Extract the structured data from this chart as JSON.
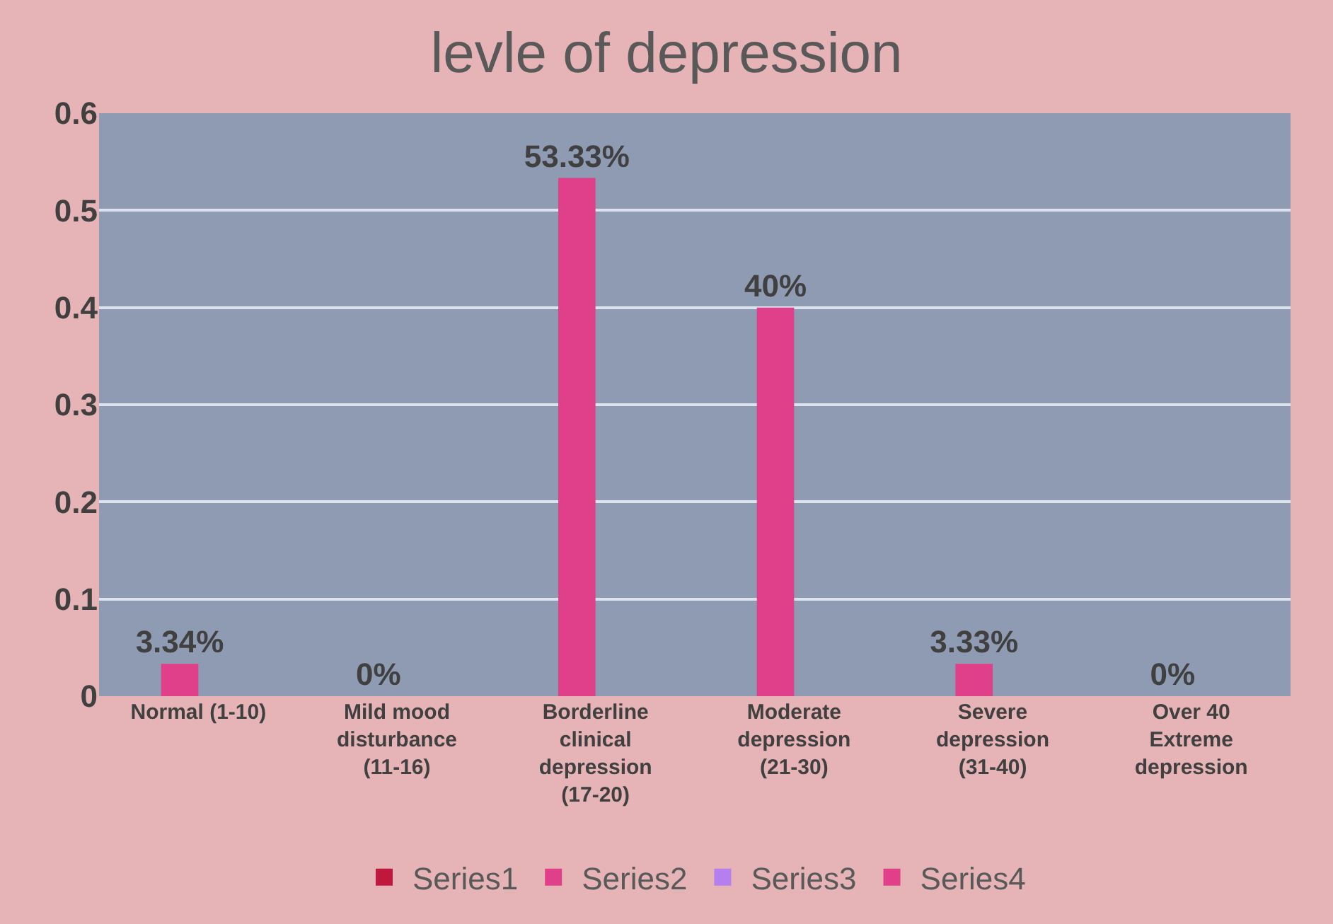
{
  "chart_data": {
    "type": "bar",
    "title": "levle of depression",
    "categories": [
      "Normal (1-10)",
      "Mild mood disturbance (11-16)",
      "Borderline clinical depression (17-20)",
      "Moderate depression (21-30)",
      "Severe depression (31-40)",
      "Over 40 Extreme depression"
    ],
    "series": [
      {
        "name": "Series1",
        "color": "#c0173f",
        "values": [
          null,
          null,
          null,
          null,
          null,
          null
        ]
      },
      {
        "name": "Series2",
        "color": "#e0408a",
        "values": [
          0.0334,
          0,
          0.5333,
          0.4,
          0.0333,
          0
        ],
        "value_labels": [
          "3.34%",
          "0%",
          "53.33%",
          "40%",
          "3.33%",
          "0%"
        ]
      },
      {
        "name": "Series3",
        "color": "#b57ff0",
        "values": [
          null,
          null,
          null,
          null,
          null,
          null
        ]
      },
      {
        "name": "Series4",
        "color": "#e0408a",
        "values": [
          null,
          null,
          null,
          null,
          null,
          null
        ]
      }
    ],
    "ylim": [
      0,
      0.6
    ],
    "yticks": [
      0,
      0.1,
      0.2,
      0.3,
      0.4,
      0.5,
      0.6
    ],
    "grid": "y",
    "legend": "bottom"
  }
}
